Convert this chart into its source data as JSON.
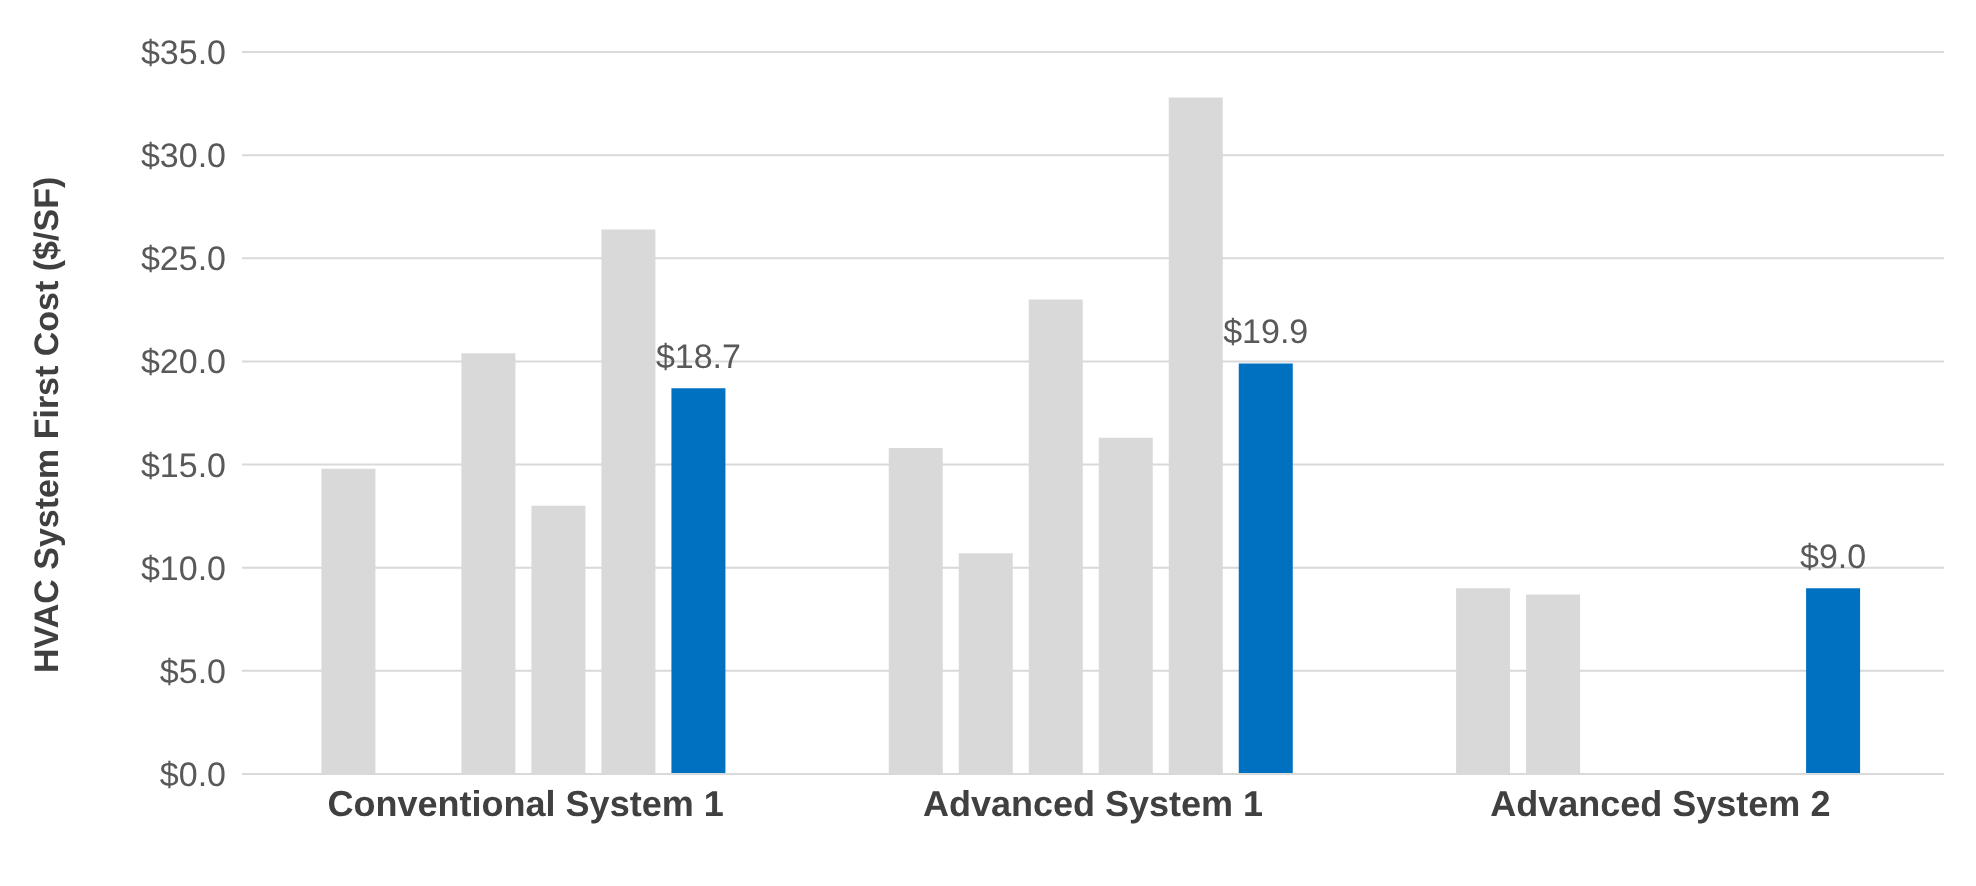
{
  "chart_data": {
    "type": "bar",
    "ylabel": "HVAC System First Cost ($/SF)",
    "categories": [
      "Conventional System 1",
      "Advanced System 1",
      "Advanced System 2"
    ],
    "series": [
      {
        "color": "#d9d9d9",
        "values": [
          14.8,
          15.8,
          9.0
        ]
      },
      {
        "color": "#d9d9d9",
        "values": [
          null,
          10.7,
          8.7
        ]
      },
      {
        "color": "#d9d9d9",
        "values": [
          20.4,
          23.0,
          null
        ]
      },
      {
        "color": "#d9d9d9",
        "values": [
          13.0,
          16.3,
          null
        ]
      },
      {
        "color": "#d9d9d9",
        "values": [
          26.4,
          32.8,
          null
        ]
      },
      {
        "color": "#0070c0",
        "values": [
          18.7,
          19.9,
          9.0
        ],
        "value_labels": [
          "$18.7",
          "$19.9",
          "$9.0"
        ]
      }
    ],
    "ylim": [
      0,
      35
    ],
    "yticks": [
      {
        "value": 0,
        "label": "$0.0"
      },
      {
        "value": 5,
        "label": "$5.0"
      },
      {
        "value": 10,
        "label": "$10.0"
      },
      {
        "value": 15,
        "label": "$15.0"
      },
      {
        "value": 20,
        "label": "$20.0"
      },
      {
        "value": 25,
        "label": "$25.0"
      },
      {
        "value": 30,
        "label": "$30.0"
      },
      {
        "value": 35,
        "label": "$35.0"
      }
    ],
    "grid": "y",
    "legend": false
  }
}
